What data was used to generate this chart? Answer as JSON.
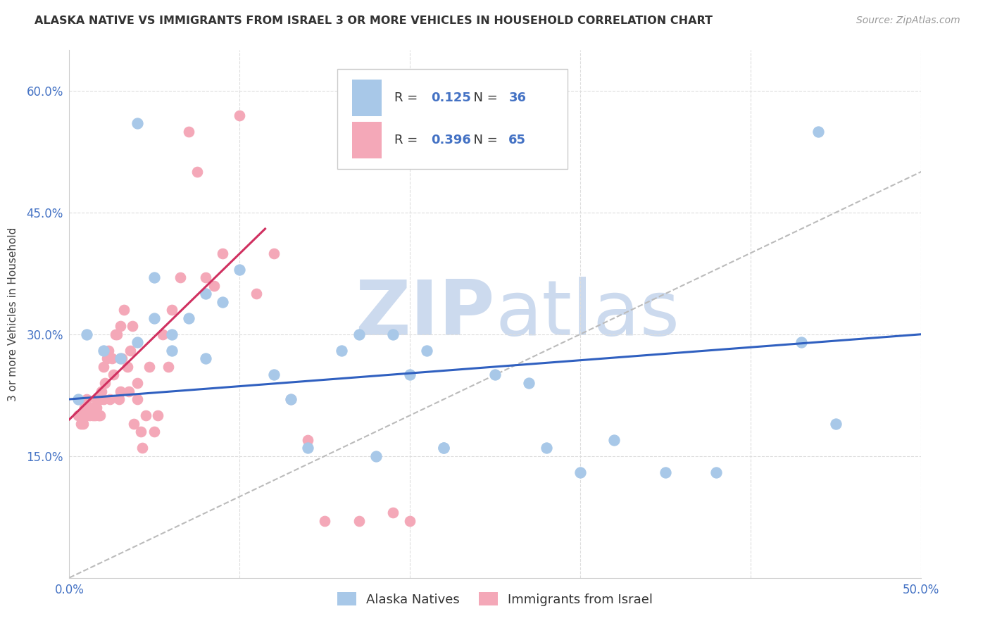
{
  "title": "ALASKA NATIVE VS IMMIGRANTS FROM ISRAEL 3 OR MORE VEHICLES IN HOUSEHOLD CORRELATION CHART",
  "source": "Source: ZipAtlas.com",
  "ylabel": "3 or more Vehicles in Household",
  "xlim": [
    0.0,
    0.5
  ],
  "ylim": [
    0.0,
    0.65
  ],
  "blue_R": 0.125,
  "blue_N": 36,
  "pink_R": 0.396,
  "pink_N": 65,
  "blue_color": "#a8c8e8",
  "pink_color": "#f4a8b8",
  "blue_line_color": "#3060c0",
  "pink_line_color": "#d03060",
  "watermark_zip_color": "#c8d8ee",
  "watermark_atlas_color": "#c0d0e8",
  "legend_label_blue": "Alaska Natives",
  "legend_label_pink": "Immigrants from Israel",
  "blue_scatter_x": [
    0.005,
    0.01,
    0.02,
    0.03,
    0.04,
    0.04,
    0.05,
    0.05,
    0.06,
    0.06,
    0.07,
    0.08,
    0.08,
    0.09,
    0.1,
    0.12,
    0.13,
    0.14,
    0.16,
    0.17,
    0.18,
    0.19,
    0.2,
    0.21,
    0.22,
    0.22,
    0.25,
    0.27,
    0.28,
    0.3,
    0.32,
    0.35,
    0.38,
    0.43,
    0.44,
    0.45
  ],
  "blue_scatter_y": [
    0.22,
    0.3,
    0.28,
    0.27,
    0.56,
    0.29,
    0.32,
    0.37,
    0.28,
    0.3,
    0.32,
    0.27,
    0.35,
    0.34,
    0.38,
    0.25,
    0.22,
    0.16,
    0.28,
    0.3,
    0.15,
    0.3,
    0.25,
    0.28,
    0.16,
    0.16,
    0.25,
    0.24,
    0.16,
    0.13,
    0.17,
    0.13,
    0.13,
    0.29,
    0.55,
    0.19
  ],
  "pink_scatter_x": [
    0.005,
    0.006,
    0.007,
    0.008,
    0.009,
    0.01,
    0.01,
    0.012,
    0.012,
    0.013,
    0.014,
    0.015,
    0.015,
    0.016,
    0.016,
    0.017,
    0.018,
    0.018,
    0.019,
    0.02,
    0.02,
    0.021,
    0.022,
    0.023,
    0.024,
    0.025,
    0.026,
    0.027,
    0.028,
    0.029,
    0.03,
    0.03,
    0.031,
    0.032,
    0.034,
    0.035,
    0.036,
    0.037,
    0.038,
    0.04,
    0.04,
    0.042,
    0.043,
    0.045,
    0.047,
    0.05,
    0.052,
    0.055,
    0.058,
    0.06,
    0.065,
    0.07,
    0.075,
    0.08,
    0.085,
    0.09,
    0.1,
    0.11,
    0.12,
    0.13,
    0.14,
    0.15,
    0.17,
    0.19,
    0.2
  ],
  "pink_scatter_y": [
    0.2,
    0.2,
    0.19,
    0.19,
    0.21,
    0.2,
    0.22,
    0.2,
    0.21,
    0.21,
    0.2,
    0.21,
    0.2,
    0.21,
    0.22,
    0.2,
    0.22,
    0.2,
    0.23,
    0.22,
    0.26,
    0.24,
    0.27,
    0.28,
    0.22,
    0.27,
    0.25,
    0.3,
    0.3,
    0.22,
    0.23,
    0.31,
    0.27,
    0.33,
    0.26,
    0.23,
    0.28,
    0.31,
    0.19,
    0.24,
    0.22,
    0.18,
    0.16,
    0.2,
    0.26,
    0.18,
    0.2,
    0.3,
    0.26,
    0.33,
    0.37,
    0.55,
    0.5,
    0.37,
    0.36,
    0.4,
    0.57,
    0.35,
    0.4,
    0.22,
    0.17,
    0.07,
    0.07,
    0.08,
    0.07
  ],
  "blue_line_x0": 0.0,
  "blue_line_x1": 0.5,
  "blue_line_y0": 0.22,
  "blue_line_y1": 0.3,
  "pink_line_x0": 0.0,
  "pink_line_x1": 0.115,
  "pink_line_y0": 0.195,
  "pink_line_y1": 0.43
}
